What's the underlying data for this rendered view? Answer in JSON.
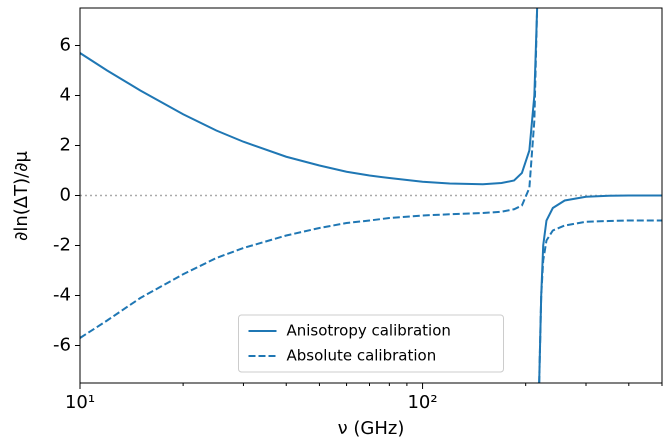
{
  "chart_data": {
    "type": "line",
    "x_label": "ν (GHz)",
    "y_label": "∂ln(ΔT)/∂μ",
    "x": [
      10,
      12,
      15,
      20,
      25,
      30,
      40,
      50,
      60,
      70,
      80,
      100,
      120,
      150,
      170,
      185,
      195,
      205,
      212,
      216,
      217.5,
      219,
      222,
      225,
      230,
      240,
      260,
      300,
      350,
      400,
      500
    ],
    "series": [
      {
        "name": "Anisotropy calibration",
        "color": "#1f77b4",
        "dash": "solid",
        "values": [
          5.7,
          5.0,
          4.2,
          3.25,
          2.6,
          2.15,
          1.55,
          1.2,
          0.95,
          0.8,
          0.7,
          0.55,
          0.48,
          0.45,
          0.5,
          0.6,
          0.9,
          1.8,
          4,
          7.5,
          null,
          -7.5,
          -4,
          -2,
          -1,
          -0.5,
          -0.2,
          -0.05,
          -0.01,
          0,
          0
        ]
      },
      {
        "name": "Absolute calibration",
        "color": "#1f77b4",
        "dash": "dashed",
        "values": [
          -5.7,
          -5.0,
          -4.1,
          -3.15,
          -2.5,
          -2.1,
          -1.6,
          -1.3,
          -1.1,
          -1.0,
          -0.9,
          -0.8,
          -0.75,
          -0.7,
          -0.65,
          -0.55,
          -0.4,
          0.3,
          3,
          7.5,
          null,
          -7.5,
          -4,
          -2.6,
          -1.8,
          -1.4,
          -1.2,
          -1.05,
          -1.02,
          -1.0,
          -1.0
        ]
      }
    ],
    "xscale": "log",
    "xlim": [
      10,
      500
    ],
    "xticks": [
      {
        "value": 10,
        "label": "10¹"
      },
      {
        "value": 100,
        "label": "10²"
      }
    ],
    "xminor_ticks": [
      20,
      30,
      40,
      50,
      60,
      70,
      80,
      90,
      200,
      300,
      400,
      500
    ],
    "ylim": [
      -7.5,
      7.5
    ],
    "yticks": [
      -6,
      -4,
      -2,
      0,
      2,
      4,
      6
    ],
    "reference_line": 0,
    "legend": "lower center"
  }
}
